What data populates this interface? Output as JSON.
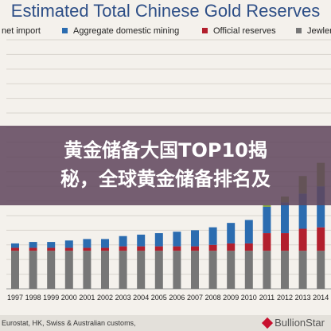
{
  "chart_data": {
    "type": "bar",
    "stacked": true,
    "title": "Estimated Total Chinese Gold Reserves",
    "categories": [
      "1997",
      "1998",
      "1999",
      "2000",
      "2001",
      "2002",
      "2003",
      "2004",
      "2005",
      "2006",
      "2007",
      "2008",
      "2009",
      "2010",
      "2011",
      "2012",
      "2013",
      "2014"
    ],
    "series": [
      {
        "name": "net import",
        "color": "#7fa33c",
        "values": [
          0,
          0,
          0,
          0,
          0,
          0,
          0,
          0,
          0,
          0,
          0,
          0,
          0,
          0,
          0.1,
          0.4,
          1.2,
          1.6
        ]
      },
      {
        "name": "Aggregate domestic mining",
        "color": "#2b6cb0",
        "values": [
          0.3,
          0.4,
          0.4,
          0.5,
          0.6,
          0.6,
          0.7,
          0.8,
          0.9,
          1.0,
          1.1,
          1.2,
          1.4,
          1.6,
          1.8,
          2.1,
          2.4,
          2.8
        ]
      },
      {
        "name": "Official reserves",
        "color": "#b21f2d",
        "values": [
          0.2,
          0.2,
          0.2,
          0.2,
          0.2,
          0.2,
          0.3,
          0.3,
          0.3,
          0.3,
          0.3,
          0.4,
          0.5,
          0.5,
          1.2,
          1.2,
          1.5,
          1.6
        ]
      },
      {
        "name": "Jewlery",
        "color": "#777777",
        "values": [
          2.6,
          2.6,
          2.6,
          2.6,
          2.6,
          2.6,
          2.6,
          2.6,
          2.6,
          2.6,
          2.6,
          2.6,
          2.6,
          2.6,
          2.6,
          2.6,
          2.6,
          2.6
        ]
      }
    ],
    "ylim": [
      0,
      17
    ],
    "grid": true,
    "legend": "top"
  },
  "legend_items": [
    {
      "label": "net import",
      "color": "#7fa33c"
    },
    {
      "label": "Aggregate domestic mining",
      "color": "#2b6cb0"
    },
    {
      "label": "Official reserves",
      "color": "#b21f2d"
    },
    {
      "label": "Jewlery",
      "color": "#777777"
    }
  ],
  "banner": {
    "line1": "黄金储备大国TOP10揭",
    "line2": "秘，全球黄金储备排名及"
  },
  "footer": {
    "source": "Eurostat, HK, Swiss & Australian customs,",
    "brand": "BullionStar"
  }
}
